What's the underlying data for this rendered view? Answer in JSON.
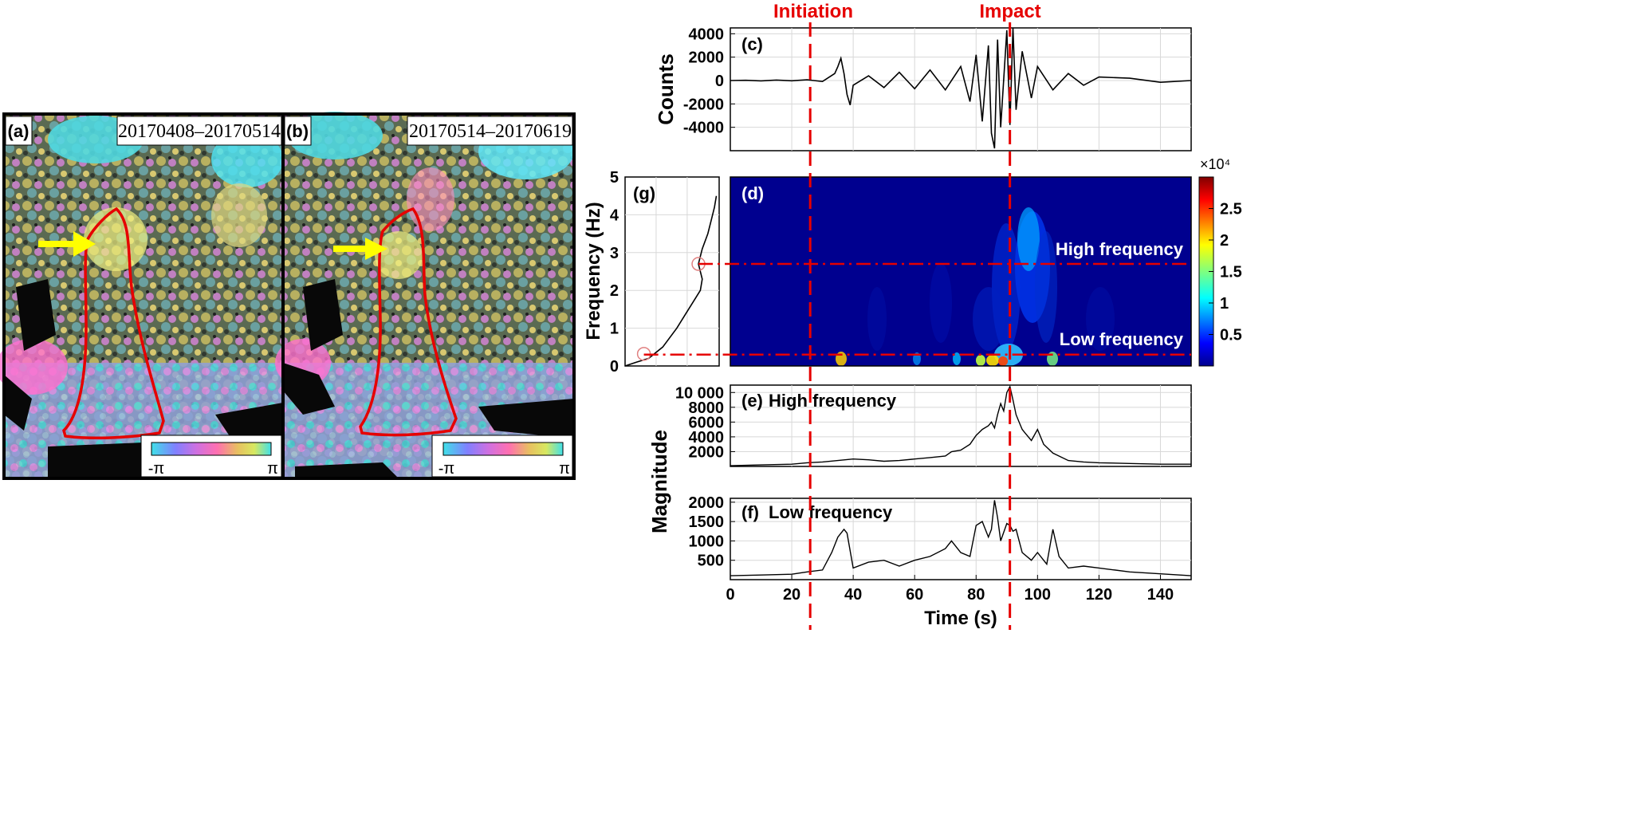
{
  "panels": {
    "a": {
      "label": "(a)",
      "dates": "20170408–20170514",
      "cb_min": "-π",
      "cb_max": "π"
    },
    "b": {
      "label": "(b)",
      "dates": "20170514–20170619",
      "cb_min": "-π",
      "cb_max": "π"
    }
  },
  "annotations": {
    "initiation": "Initiation",
    "impact": "Impact",
    "initiation_time": 26,
    "impact_time": 91
  },
  "colors": {
    "red": "#e60000",
    "yellow": "#ffff00",
    "jet_dark": "#00008f"
  },
  "chart_data": [
    {
      "id": "c",
      "type": "line",
      "label": "(c)",
      "ylabel": "Counts",
      "ylim": [
        -6000,
        4500
      ],
      "yticks": [
        -4000,
        -2000,
        0,
        2000,
        4000
      ],
      "ytick_labels": [
        "-4000",
        "-2000",
        "0",
        "2000",
        "4000"
      ],
      "x": [
        0,
        5,
        10,
        15,
        20,
        25,
        30,
        34,
        35,
        36,
        37,
        38,
        39,
        40,
        45,
        50,
        55,
        60,
        65,
        70,
        75,
        78,
        80,
        82,
        84,
        85,
        86,
        87,
        88,
        90,
        91,
        92,
        93,
        95,
        98,
        100,
        105,
        110,
        115,
        120,
        130,
        140,
        150
      ],
      "y": [
        0,
        20,
        -30,
        40,
        -20,
        60,
        -80,
        600,
        1200,
        1900,
        600,
        -1200,
        -2100,
        -400,
        400,
        -600,
        700,
        -700,
        900,
        -800,
        1200,
        -1800,
        2200,
        -3500,
        3000,
        -4500,
        -5800,
        3500,
        -4000,
        4300,
        -3800,
        4500,
        -2500,
        2500,
        -1500,
        1200,
        -800,
        600,
        -400,
        300,
        200,
        -150,
        0
      ]
    },
    {
      "id": "d",
      "type": "heatmap",
      "label": "(d)",
      "ylabel": "Frequency (Hz)",
      "ylim": [
        0,
        5
      ],
      "xlim": [
        0,
        150
      ],
      "yticks": [
        0,
        1,
        2,
        3,
        4,
        5
      ],
      "colorbar": {
        "ticks": [
          0.5,
          1,
          1.5,
          2,
          2.5
        ],
        "tick_labels": [
          "0.5",
          "1",
          "1.5",
          "2",
          "2.5"
        ],
        "exponent": "×10⁴"
      },
      "hf_line_hz": 2.7,
      "lf_line_hz": 0.3,
      "hf_label": "High frequency",
      "lf_label": "Low frequency"
    },
    {
      "id": "e",
      "type": "line",
      "label": "(e)",
      "title": "High frequency",
      "ylabel": "Magnitude",
      "ylim": [
        0,
        11000
      ],
      "yticks": [
        2000,
        4000,
        6000,
        8000,
        10000
      ],
      "ytick_labels": [
        "2000",
        "4000",
        "6000",
        "8000",
        "10 000"
      ],
      "x": [
        0,
        10,
        20,
        25,
        30,
        35,
        40,
        45,
        50,
        55,
        60,
        65,
        70,
        72,
        75,
        78,
        80,
        82,
        84,
        85,
        86,
        87,
        88,
        89,
        90,
        91,
        92,
        93,
        94,
        95,
        96,
        98,
        100,
        102,
        105,
        110,
        115,
        120,
        130,
        140,
        150
      ],
      "y": [
        100,
        200,
        300,
        500,
        600,
        800,
        1000,
        900,
        700,
        800,
        1000,
        1200,
        1400,
        2000,
        2200,
        3000,
        4200,
        5000,
        5500,
        6000,
        5200,
        7000,
        8500,
        7500,
        10000,
        10800,
        9000,
        7000,
        6000,
        5000,
        4500,
        3500,
        5000,
        3000,
        1800,
        800,
        600,
        500,
        400,
        300,
        300
      ]
    },
    {
      "id": "f",
      "type": "line",
      "label": "(f)",
      "title": "Low frequency",
      "ylim": [
        0,
        2100
      ],
      "yticks": [
        500,
        1000,
        1500,
        2000
      ],
      "ytick_labels": [
        "500",
        "1000",
        "1500",
        "2000"
      ],
      "xlim": [
        0,
        150
      ],
      "xticks": [
        0,
        20,
        40,
        60,
        80,
        100,
        120,
        140
      ],
      "xlabel": "Time (s)",
      "x": [
        0,
        10,
        20,
        25,
        30,
        33,
        35,
        37,
        38,
        40,
        45,
        50,
        55,
        60,
        65,
        70,
        72,
        75,
        78,
        80,
        82,
        84,
        85,
        86,
        87,
        88,
        90,
        91,
        92,
        93,
        95,
        98,
        100,
        103,
        105,
        107,
        110,
        115,
        120,
        130,
        140,
        150
      ],
      "y": [
        100,
        120,
        140,
        200,
        250,
        700,
        1100,
        1300,
        1200,
        300,
        450,
        500,
        350,
        500,
        600,
        800,
        1000,
        700,
        600,
        1400,
        1500,
        1100,
        1300,
        2050,
        1600,
        1000,
        1450,
        1400,
        1250,
        1300,
        700,
        500,
        700,
        400,
        1300,
        600,
        300,
        350,
        300,
        200,
        150,
        100
      ]
    },
    {
      "id": "g",
      "type": "line",
      "label": "(g)",
      "points": [
        [
          0,
          0
        ],
        [
          0.12,
          0.1
        ],
        [
          0.25,
          0.2
        ],
        [
          0.4,
          0.5
        ],
        [
          0.55,
          1.0
        ],
        [
          0.65,
          1.4
        ],
        [
          0.75,
          1.8
        ],
        [
          0.8,
          2.0
        ],
        [
          0.82,
          2.3
        ],
        [
          0.78,
          2.7
        ],
        [
          0.82,
          3.1
        ],
        [
          0.88,
          3.5
        ],
        [
          0.92,
          3.9
        ],
        [
          0.95,
          4.2
        ],
        [
          0.97,
          4.5
        ]
      ],
      "circles": [
        [
          0.2,
          0.32
        ],
        [
          0.78,
          2.7
        ]
      ]
    }
  ]
}
